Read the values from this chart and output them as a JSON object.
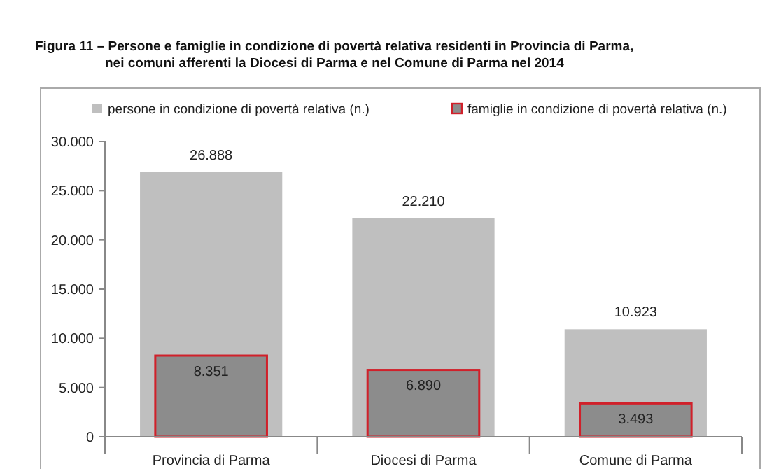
{
  "chart_data": {
    "type": "bar",
    "title": "Figura 11 – Persone e famiglie in condizione di povertà relativa residenti in Provincia di Parma,\nnei comuni afferenti la Diocesi di Parma e nel Comune di Parma nel 2014",
    "categories": [
      "Provincia di Parma",
      "Diocesi di Parma",
      "Comune di Parma"
    ],
    "series": [
      {
        "name": "persone in condizione di povertà relativa (n.)",
        "color": "#bfbfbf",
        "values": [
          26888,
          22210,
          10923
        ],
        "value_labels": [
          "26.888",
          "22.210",
          "10.923"
        ]
      },
      {
        "name": "famiglie in condizione di povertà relativa (n.)",
        "color": "#8c8c8c",
        "values": [
          8351,
          6890,
          3493
        ],
        "value_labels": [
          "8.351",
          "6.890",
          "3.493"
        ]
      }
    ],
    "ylim": [
      0,
      30000
    ],
    "yticks": [
      {
        "value": 0,
        "label": "0"
      },
      {
        "value": 5000,
        "label": "5.000"
      },
      {
        "value": 10000,
        "label": "10.000"
      },
      {
        "value": 15000,
        "label": "15.000"
      },
      {
        "value": 20000,
        "label": "20.000"
      },
      {
        "value": 25000,
        "label": "25.000"
      },
      {
        "value": 30000,
        "label": "30.000"
      }
    ],
    "legend": "top",
    "grid": false
  }
}
